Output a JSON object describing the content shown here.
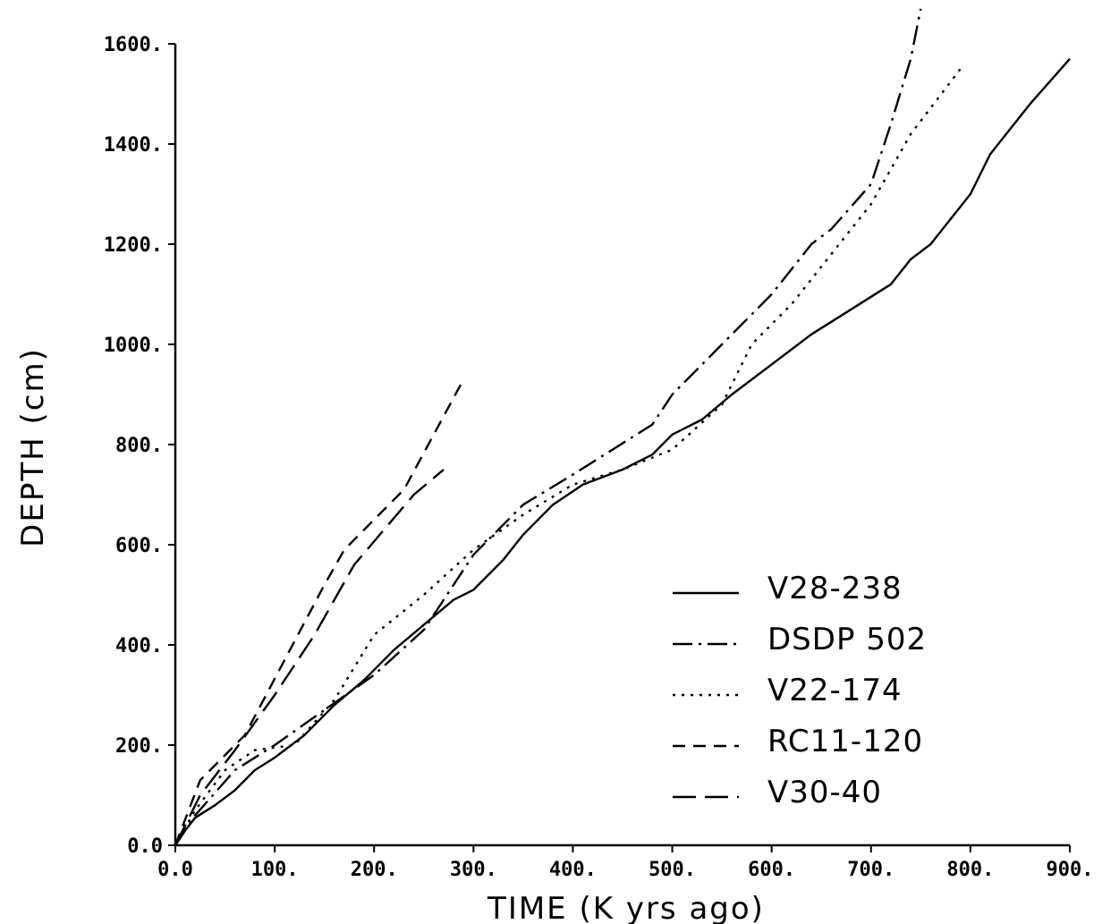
{
  "chart_data": {
    "type": "line",
    "title": "",
    "xlabel": "TIME (K yrs ago)",
    "ylabel": "DEPTH (cm)",
    "xlim": [
      0,
      900
    ],
    "ylim": [
      0,
      1600
    ],
    "x_ticks": [
      "0.0",
      "100.",
      "200.",
      "300.",
      "400.",
      "500.",
      "600.",
      "700.",
      "800.",
      "900."
    ],
    "y_ticks": [
      "0.0",
      "200.",
      "400.",
      "600.",
      "800.",
      "1000.",
      "1200.",
      "1400.",
      "1600."
    ],
    "legend_position": "bottom-right",
    "grid": false,
    "series": [
      {
        "name": "V28-238",
        "dash": "solid",
        "x": [
          0,
          10,
          20,
          40,
          60,
          80,
          100,
          130,
          160,
          190,
          220,
          250,
          280,
          300,
          330,
          350,
          380,
          410,
          450,
          480,
          500,
          530,
          560,
          600,
          640,
          680,
          720,
          740,
          760,
          800,
          820,
          860,
          900
        ],
        "y": [
          0,
          30,
          55,
          80,
          110,
          150,
          175,
          220,
          280,
          330,
          390,
          440,
          490,
          510,
          570,
          620,
          680,
          720,
          750,
          780,
          820,
          850,
          900,
          960,
          1020,
          1070,
          1120,
          1170,
          1200,
          1300,
          1380,
          1480,
          1570
        ]
      },
      {
        "name": "DSDP 502",
        "dash": "dash-dot",
        "x": [
          0,
          20,
          60,
          100,
          150,
          200,
          250,
          300,
          350,
          400,
          440,
          480,
          500,
          550,
          600,
          640,
          660,
          700,
          720,
          740,
          750
        ],
        "y": [
          0,
          60,
          150,
          200,
          270,
          340,
          430,
          580,
          680,
          740,
          790,
          840,
          900,
          1000,
          1100,
          1200,
          1230,
          1320,
          1440,
          1570,
          1670
        ]
      },
      {
        "name": "V22-174",
        "dash": "dotted",
        "x": [
          0,
          20,
          50,
          80,
          120,
          160,
          200,
          250,
          300,
          350,
          400,
          450,
          500,
          550,
          580,
          620,
          660,
          700,
          740,
          790
        ],
        "y": [
          0,
          70,
          150,
          190,
          200,
          290,
          420,
          500,
          590,
          660,
          720,
          750,
          790,
          880,
          1000,
          1080,
          1180,
          1280,
          1420,
          1550
        ]
      },
      {
        "name": "RC11-120",
        "dash": "dashed",
        "x": [
          0,
          25,
          70,
          110,
          150,
          170,
          200,
          230,
          260,
          290
        ],
        "y": [
          0,
          130,
          220,
          370,
          520,
          590,
          650,
          710,
          820,
          930
        ]
      },
      {
        "name": "V30-40",
        "dash": "long-dash",
        "x": [
          0,
          25,
          60,
          100,
          140,
          180,
          210,
          240,
          270
        ],
        "y": [
          0,
          100,
          190,
          300,
          420,
          560,
          630,
          700,
          750
        ]
      }
    ]
  }
}
